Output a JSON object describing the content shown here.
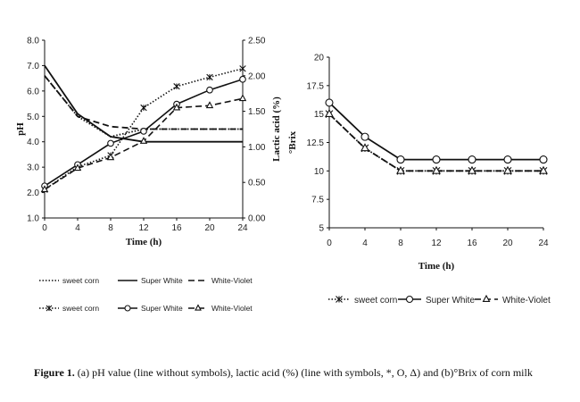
{
  "chart_data": [
    {
      "type": "line",
      "panel": "a",
      "xlabel": "Time (h)",
      "ylabel": "pH",
      "y2label": "Lactic acid (%)",
      "x": [
        0,
        4,
        8,
        12,
        16,
        20,
        24
      ],
      "xticks": [
        "0",
        "4",
        "8",
        "12",
        "16",
        "20",
        "24"
      ],
      "ylim": [
        1.0,
        8.0
      ],
      "yticks": [
        "1.0",
        "2.0",
        "3.0",
        "4.0",
        "5.0",
        "6.0",
        "7.0",
        "8.0"
      ],
      "y2lim": [
        0.0,
        2.5
      ],
      "y2ticks": [
        "0.00",
        "0.50",
        "1.00",
        "1.50",
        "2.00",
        "2.50"
      ],
      "ph_series": [
        {
          "name": "sweet corn",
          "style": "dotted",
          "values": [
            6.6,
            5.0,
            4.2,
            4.5,
            4.5,
            4.5,
            4.5
          ]
        },
        {
          "name": "Super White",
          "style": "solid",
          "values": [
            7.0,
            5.1,
            4.2,
            4.0,
            4.0,
            4.0,
            4.0
          ]
        },
        {
          "name": "White-Violet",
          "style": "dashed",
          "values": [
            6.6,
            5.0,
            4.6,
            4.5,
            4.5,
            4.5,
            4.5
          ]
        }
      ],
      "lactic_series": [
        {
          "name": "sweet corn",
          "style": "dotted",
          "marker": "x",
          "values": [
            0.4,
            0.72,
            0.88,
            1.55,
            1.85,
            1.98,
            2.1
          ]
        },
        {
          "name": "Super White",
          "style": "solid",
          "marker": "circle",
          "values": [
            0.45,
            0.75,
            1.05,
            1.22,
            1.6,
            1.8,
            1.95
          ]
        },
        {
          "name": "White-Violet",
          "style": "dashed",
          "marker": "triangle",
          "values": [
            0.4,
            0.7,
            0.85,
            1.08,
            1.55,
            1.58,
            1.68
          ]
        }
      ],
      "legend": {
        "row1": [
          "sweet corn",
          "Super White",
          "White-Violet"
        ],
        "row2": [
          "sweet corn",
          "Super White",
          "White-Violet"
        ]
      }
    },
    {
      "type": "line",
      "panel": "b",
      "xlabel": "Time (h)",
      "ylabel": "°Brix",
      "x": [
        0,
        4,
        8,
        12,
        16,
        20,
        24
      ],
      "xticks": [
        "0",
        "4",
        "8",
        "12",
        "16",
        "20",
        "24"
      ],
      "ylim": [
        5,
        20
      ],
      "yticks": [
        "5",
        "7.5",
        "10",
        "12.5",
        "15",
        "17.5",
        "20"
      ],
      "series": [
        {
          "name": "sweet corn",
          "style": "dotted",
          "marker": "x",
          "values": [
            15,
            12,
            10,
            10,
            10,
            10,
            10
          ]
        },
        {
          "name": "Super White",
          "style": "solid",
          "marker": "circle",
          "values": [
            16,
            13,
            11,
            11,
            11,
            11,
            11
          ]
        },
        {
          "name": "White-Violet",
          "style": "dashed",
          "marker": "triangle",
          "values": [
            15,
            12,
            10,
            10,
            10,
            10,
            10
          ]
        }
      ],
      "legend": [
        "sweet corn",
        "Super White",
        "White-Violet"
      ]
    }
  ],
  "caption": {
    "label": "Figure 1.",
    "text": "(a) pH value (line without symbols), lactic acid (%) (line with symbols, *, O, Δ) and (b)°Brix of corn milk"
  }
}
